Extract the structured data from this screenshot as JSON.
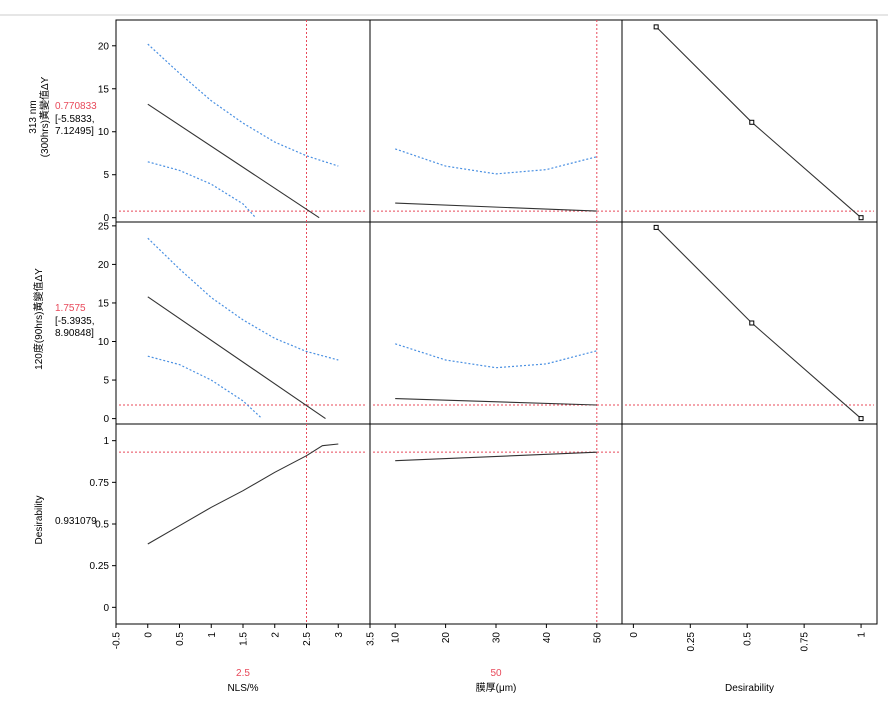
{
  "chart_data": {
    "type": "line",
    "title": "",
    "rows": [
      {
        "response_label_lines": [
          "313 nm",
          "(300hrs)黃變值ΔY"
        ],
        "current_value": "0.770833",
        "interval_lines": [
          "[-5.5833,",
          "7.12495]"
        ],
        "current_y": 0.770833,
        "ylim": [
          -0.5,
          23
        ],
        "yticks": [
          0,
          5,
          10,
          15,
          20
        ],
        "ytick_labels": [
          "0",
          "5",
          "10",
          "15",
          "20"
        ]
      },
      {
        "response_label_lines": [
          "120度(90hrs)黃變值ΔY"
        ],
        "current_value": "1.7575",
        "interval_lines": [
          "[-5.3935,",
          "8.90848]"
        ],
        "current_y": 1.7575,
        "ylim": [
          -0.7,
          25.5
        ],
        "yticks": [
          0,
          5,
          10,
          15,
          20,
          25
        ],
        "ytick_labels": [
          "0",
          "5",
          "10",
          "15",
          "20",
          "25"
        ]
      },
      {
        "response_label_lines": [
          "Desirability"
        ],
        "current_value": "0.931079",
        "interval_lines": [],
        "current_y": 0.931079,
        "ylim": [
          -0.1,
          1.1
        ],
        "yticks": [
          0,
          0.25,
          0.5,
          0.75,
          1
        ],
        "ytick_labels": [
          "0",
          "0.25",
          "0.5",
          "0.75",
          "1"
        ]
      }
    ],
    "columns": [
      {
        "xlabel": "NLS/%",
        "current_label": "2.5",
        "current_x": 2.5,
        "xlim": [
          -0.5,
          3.5
        ],
        "xticks": [
          -0.5,
          0,
          0.5,
          1,
          1.5,
          2,
          2.5,
          3,
          3.5
        ],
        "xtick_labels": [
          "-0.5",
          "0",
          "0.5",
          "1",
          "1.5",
          "2",
          "2.5",
          "3",
          "3.5"
        ]
      },
      {
        "xlabel": "膜厚(μm)",
        "current_label": "50",
        "current_x": 50,
        "xlim": [
          5,
          55
        ],
        "xticks": [
          10,
          20,
          30,
          40,
          50
        ],
        "xtick_labels": [
          "10",
          "20",
          "30",
          "40",
          "50"
        ]
      },
      {
        "xlabel": "Desirability",
        "current_label": "",
        "current_x": null,
        "xlim": [
          -0.05,
          1.07
        ],
        "xticks": [
          0,
          0.25,
          0.5,
          0.75,
          1
        ],
        "xtick_labels": [
          "0",
          "0.25",
          "0.5",
          "0.75",
          "1"
        ]
      }
    ],
    "cells": [
      {
        "row": 0,
        "col": 0,
        "series": [
          {
            "role": "prediction",
            "x": [
              0,
              2.7
            ],
            "y": [
              13.2,
              0
            ]
          },
          {
            "role": "upper_ci",
            "x": [
              0,
              0.5,
              1,
              1.5,
              2,
              2.5,
              3
            ],
            "y": [
              20.2,
              16.8,
              13.6,
              11.0,
              8.8,
              7.2,
              6.0
            ]
          },
          {
            "role": "lower_ci",
            "x": [
              0,
              0.5,
              1,
              1.5,
              1.7
            ],
            "y": [
              6.5,
              5.5,
              3.9,
              1.6,
              0
            ]
          }
        ]
      },
      {
        "row": 0,
        "col": 1,
        "series": [
          {
            "role": "prediction",
            "x": [
              10,
              50
            ],
            "y": [
              1.7,
              0.77
            ]
          },
          {
            "role": "upper_ci",
            "x": [
              10,
              20,
              30,
              40,
              50
            ],
            "y": [
              8.0,
              6.0,
              5.1,
              5.6,
              7.1
            ]
          }
        ]
      },
      {
        "row": 0,
        "col": 2,
        "series": [
          {
            "role": "desirability",
            "x": [
              0.1,
              0.52,
              1.0
            ],
            "y": [
              22.2,
              11.1,
              0
            ]
          }
        ]
      },
      {
        "row": 1,
        "col": 0,
        "series": [
          {
            "role": "prediction",
            "x": [
              0,
              2.8
            ],
            "y": [
              15.8,
              0
            ]
          },
          {
            "role": "upper_ci",
            "x": [
              0,
              0.5,
              1,
              1.5,
              2,
              2.5,
              3
            ],
            "y": [
              23.4,
              19.4,
              15.7,
              12.8,
              10.4,
              8.7,
              7.6
            ]
          },
          {
            "role": "lower_ci",
            "x": [
              0,
              0.5,
              1,
              1.5,
              1.8
            ],
            "y": [
              8.1,
              7.0,
              5.0,
              2.3,
              0
            ]
          }
        ]
      },
      {
        "row": 1,
        "col": 1,
        "series": [
          {
            "role": "prediction",
            "x": [
              10,
              50
            ],
            "y": [
              2.6,
              1.76
            ]
          },
          {
            "role": "upper_ci",
            "x": [
              10,
              20,
              30,
              40,
              50
            ],
            "y": [
              9.7,
              7.6,
              6.6,
              7.1,
              8.8
            ]
          }
        ]
      },
      {
        "row": 1,
        "col": 2,
        "series": [
          {
            "role": "desirability",
            "x": [
              0.1,
              0.52,
              1.0
            ],
            "y": [
              24.8,
              12.4,
              0
            ]
          }
        ]
      },
      {
        "row": 2,
        "col": 0,
        "series": [
          {
            "role": "prediction",
            "x": [
              0,
              0.5,
              1,
              1.5,
              2,
              2.5,
              2.75,
              3
            ],
            "y": [
              0.38,
              0.49,
              0.6,
              0.7,
              0.81,
              0.91,
              0.97,
              0.98
            ]
          }
        ]
      },
      {
        "row": 2,
        "col": 1,
        "series": [
          {
            "role": "prediction",
            "x": [
              10,
              50
            ],
            "y": [
              0.88,
              0.931
            ]
          }
        ]
      }
    ],
    "grid": false,
    "legend": "none",
    "colors": {
      "prediction": "#333333",
      "ci": "#4a90e2",
      "current_marker": "#e8495a",
      "axis": "#000000",
      "text": "#000000"
    }
  }
}
